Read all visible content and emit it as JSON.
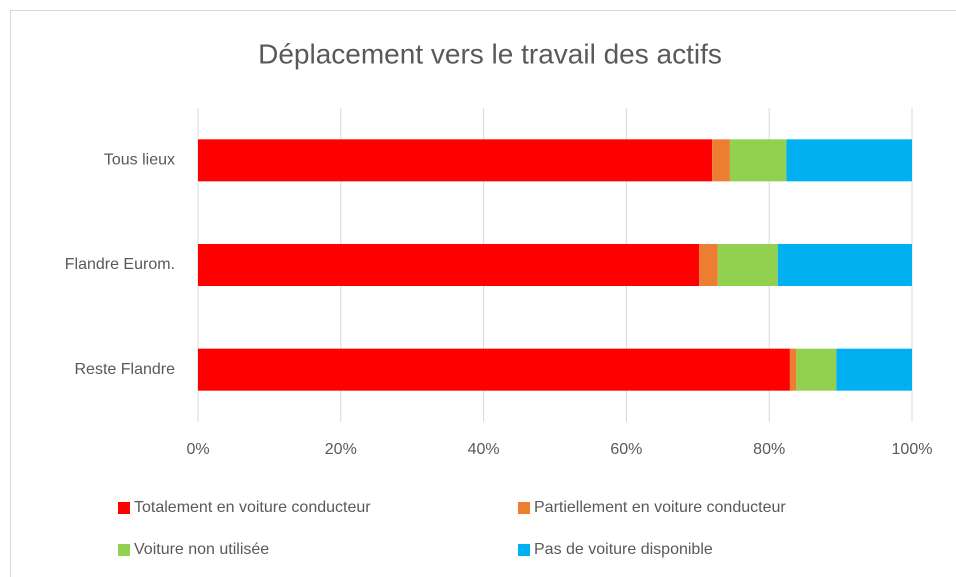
{
  "chart_data": {
    "type": "stacked_barh",
    "title": "Déplacement vers le travail des actifs",
    "categories": [
      "Tous lieux",
      "Flandre Eurom.",
      "Reste Flandre"
    ],
    "series": [
      {
        "name": "Totalement en voiture conducteur",
        "color": "#ff0000",
        "values": [
          72.0,
          70.2,
          82.9
        ]
      },
      {
        "name": "Partiellement en voiture conducteur",
        "color": "#ed7d31",
        "values": [
          2.5,
          2.6,
          0.9
        ]
      },
      {
        "name": "Voiture non utilisée",
        "color": "#92d050",
        "values": [
          7.9,
          8.4,
          5.6
        ]
      },
      {
        "name": "Pas de voiture disponible",
        "color": "#00b0f0",
        "values": [
          17.6,
          18.8,
          10.6
        ]
      }
    ],
    "xlim": [
      0,
      100
    ],
    "xticks": [
      {
        "value": 0,
        "label": "0%"
      },
      {
        "value": 20,
        "label": "20%"
      },
      {
        "value": 40,
        "label": "40%"
      },
      {
        "value": 60,
        "label": "60%"
      },
      {
        "value": 80,
        "label": "80%"
      },
      {
        "value": 100,
        "label": "100%"
      }
    ],
    "grid": true,
    "legend": "bottom"
  }
}
